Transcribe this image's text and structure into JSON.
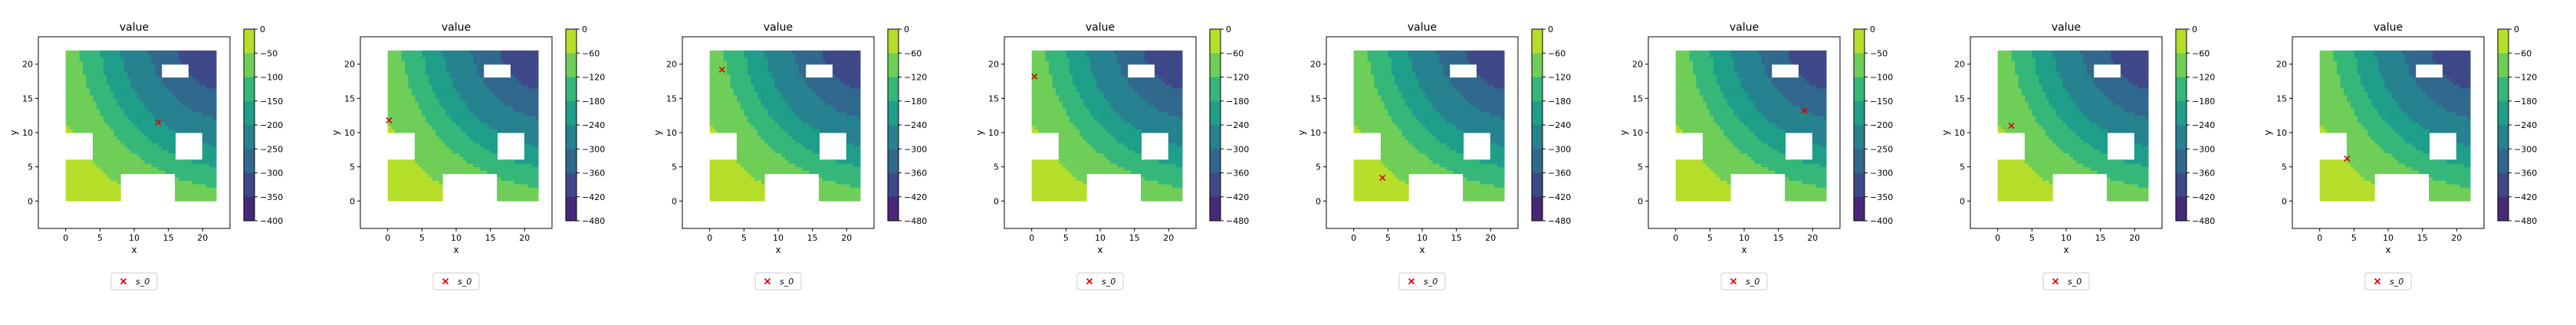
{
  "colors": {
    "viridis": [
      "#440154",
      "#482878",
      "#3e4989",
      "#31688e",
      "#26828e",
      "#1f9e89",
      "#35b779",
      "#6ece58",
      "#b5de2b",
      "#fde725"
    ],
    "marker": "#d40000",
    "wall": "#ffffff",
    "axes": "#000000"
  },
  "chart_data": [
    {
      "type": "heatmap",
      "title": "value",
      "xlabel": "x",
      "ylabel": "y",
      "xticks": [
        0,
        5,
        10,
        15,
        20
      ],
      "yticks": [
        0,
        5,
        10,
        15,
        20
      ],
      "xlim": [
        -4,
        24
      ],
      "ylim": [
        -4,
        24
      ],
      "vmin": -400,
      "vmax": 0,
      "contour_step": 50,
      "colorbar_ticks": [
        0,
        -50,
        -100,
        -150,
        -200,
        -250,
        -300,
        -350,
        -400
      ],
      "goal": [
        24,
        24
      ],
      "marker": {
        "x": 13.5,
        "y": 11.5
      },
      "legend": [
        "s_0"
      ]
    },
    {
      "type": "heatmap",
      "title": "value",
      "xlabel": "x",
      "ylabel": "y",
      "xticks": [
        0,
        5,
        10,
        15,
        20
      ],
      "yticks": [
        0,
        5,
        10,
        15,
        20
      ],
      "xlim": [
        -4,
        24
      ],
      "ylim": [
        -4,
        24
      ],
      "vmin": -480,
      "vmax": 0,
      "contour_step": 60,
      "colorbar_ticks": [
        0,
        -60,
        -120,
        -180,
        -240,
        -300,
        -360,
        -420,
        -480
      ],
      "goal": [
        24,
        24
      ],
      "marker": {
        "x": 0.2,
        "y": 11.8
      },
      "legend": [
        "s_0"
      ]
    },
    {
      "type": "heatmap",
      "title": "value",
      "xlabel": "x",
      "ylabel": "y",
      "xticks": [
        0,
        5,
        10,
        15,
        20
      ],
      "yticks": [
        0,
        5,
        10,
        15,
        20
      ],
      "xlim": [
        -4,
        24
      ],
      "ylim": [
        -4,
        24
      ],
      "vmin": -480,
      "vmax": 0,
      "contour_step": 60,
      "colorbar_ticks": [
        0,
        -60,
        -120,
        -180,
        -240,
        -300,
        -360,
        -420,
        -480
      ],
      "goal": [
        24,
        24
      ],
      "marker": {
        "x": 1.8,
        "y": 19.2
      },
      "legend": [
        "s_0"
      ]
    },
    {
      "type": "heatmap",
      "title": "value",
      "xlabel": "x",
      "ylabel": "y",
      "xticks": [
        0,
        5,
        10,
        15,
        20
      ],
      "yticks": [
        0,
        5,
        10,
        15,
        20
      ],
      "xlim": [
        -4,
        24
      ],
      "ylim": [
        -4,
        24
      ],
      "vmin": -480,
      "vmax": 0,
      "contour_step": 60,
      "colorbar_ticks": [
        0,
        -60,
        -120,
        -180,
        -240,
        -300,
        -360,
        -420,
        -480
      ],
      "goal": [
        24,
        24
      ],
      "marker": {
        "x": 0.4,
        "y": 18.2
      },
      "legend": [
        "s_0"
      ]
    },
    {
      "type": "heatmap",
      "title": "value",
      "xlabel": "x",
      "ylabel": "y",
      "xticks": [
        0,
        5,
        10,
        15,
        20
      ],
      "yticks": [
        0,
        5,
        10,
        15,
        20
      ],
      "xlim": [
        -4,
        24
      ],
      "ylim": [
        -4,
        24
      ],
      "vmin": -480,
      "vmax": 0,
      "contour_step": 60,
      "colorbar_ticks": [
        0,
        -60,
        -120,
        -180,
        -240,
        -300,
        -360,
        -420,
        -480
      ],
      "goal": [
        24,
        24
      ],
      "marker": {
        "x": 4.2,
        "y": 3.4
      },
      "legend": [
        "s_0"
      ]
    },
    {
      "type": "heatmap",
      "title": "value",
      "xlabel": "x",
      "ylabel": "y",
      "xticks": [
        0,
        5,
        10,
        15,
        20
      ],
      "yticks": [
        0,
        5,
        10,
        15,
        20
      ],
      "xlim": [
        -4,
        24
      ],
      "ylim": [
        -4,
        24
      ],
      "vmin": -400,
      "vmax": 0,
      "contour_step": 50,
      "colorbar_ticks": [
        0,
        -50,
        -100,
        -150,
        -200,
        -250,
        -300,
        -350,
        -400
      ],
      "goal": [
        24,
        24
      ],
      "marker": {
        "x": 18.8,
        "y": 13.2
      },
      "legend": [
        "s_0"
      ]
    },
    {
      "type": "heatmap",
      "title": "value",
      "xlabel": "x",
      "ylabel": "y",
      "xticks": [
        0,
        5,
        10,
        15,
        20
      ],
      "yticks": [
        0,
        5,
        10,
        15,
        20
      ],
      "xlim": [
        -4,
        24
      ],
      "ylim": [
        -4,
        24
      ],
      "vmin": -480,
      "vmax": 0,
      "contour_step": 60,
      "colorbar_ticks": [
        0,
        -60,
        -120,
        -180,
        -240,
        -300,
        -360,
        -420,
        -480
      ],
      "goal": [
        24,
        24
      ],
      "marker": {
        "x": 2.0,
        "y": 11.0
      },
      "legend": [
        "s_0"
      ]
    },
    {
      "type": "heatmap",
      "title": "value",
      "xlabel": "x",
      "ylabel": "y",
      "xticks": [
        0,
        5,
        10,
        15,
        20
      ],
      "yticks": [
        0,
        5,
        10,
        15,
        20
      ],
      "xlim": [
        -4,
        24
      ],
      "ylim": [
        -4,
        24
      ],
      "vmin": -480,
      "vmax": 0,
      "contour_step": 60,
      "colorbar_ticks": [
        0,
        -60,
        -120,
        -180,
        -240,
        -300,
        -360,
        -420,
        -480
      ],
      "goal": [
        24,
        24
      ],
      "marker": {
        "x": 4.0,
        "y": 6.2
      },
      "legend": [
        "s_0"
      ]
    }
  ]
}
